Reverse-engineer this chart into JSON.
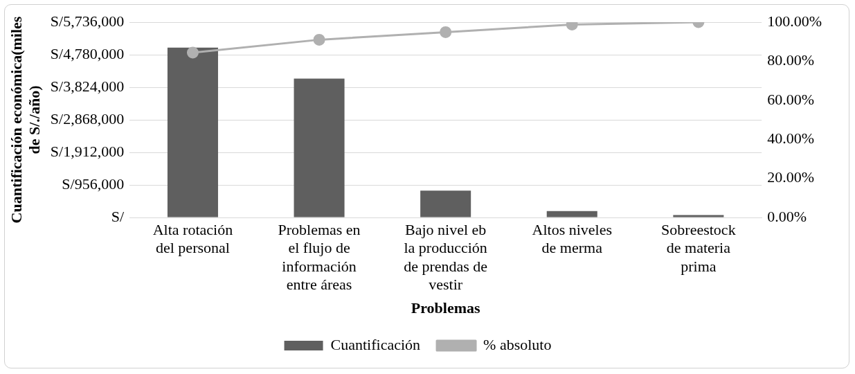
{
  "chart_data": {
    "type": "bar",
    "xlabel": "Problemas",
    "ylabel": "Cuantificación económica(miles de S/./año)",
    "categories": [
      "Alta rotación del personal",
      "Problemas en el flujo de información entre áreas",
      "Bajo nivel eb la producción de prendas de vestir",
      "Altos niveles de merma",
      "Sobreestock de materia prima"
    ],
    "series": [
      {
        "name": "Cuantificación",
        "color": "#5f5f5f",
        "values": [
          4990000,
          4080000,
          790000,
          190000,
          70000
        ]
      },
      {
        "name": "% absoluto",
        "type": "line",
        "axis": "y2",
        "color": "#b0b0b0",
        "values": [
          84.4,
          91.0,
          94.9,
          98.8,
          100
        ]
      }
    ],
    "ylim": [
      0,
      5736000
    ],
    "yticks": [
      {
        "value": 0,
        "label": "S/"
      },
      {
        "value": 956000,
        "label": "S/956,000"
      },
      {
        "value": 1912000,
        "label": "S/1,912,000"
      },
      {
        "value": 2868000,
        "label": "S/2,868,000"
      },
      {
        "value": 3824000,
        "label": "S/3,824,000"
      },
      {
        "value": 4780000,
        "label": "S/4,780,000"
      },
      {
        "value": 5736000,
        "label": "S/5,736,000"
      }
    ],
    "y2lim": [
      0,
      100
    ],
    "y2ticks": [
      {
        "value": 0,
        "label": "0.00%"
      },
      {
        "value": 20,
        "label": "20.00%"
      },
      {
        "value": 40,
        "label": "40.00%"
      },
      {
        "value": 60,
        "label": "60.00%"
      },
      {
        "value": 80,
        "label": "80.00%"
      },
      {
        "value": 100,
        "label": "100.00%"
      }
    ],
    "grid": "y",
    "legend": "bottom",
    "marker": "circle"
  }
}
